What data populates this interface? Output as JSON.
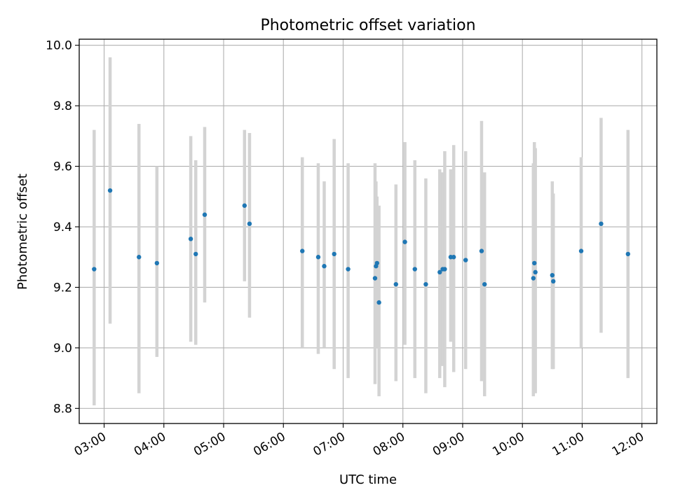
{
  "chart_data": {
    "type": "scatter",
    "title": "Photometric offset variation",
    "xlabel": "UTC time",
    "ylabel": "Photometric offset",
    "xlim": [
      "02:35",
      "12:15"
    ],
    "ylim": [
      8.75,
      10.02
    ],
    "grid": true,
    "x_ticks": [
      "03:00",
      "04:00",
      "05:00",
      "06:00",
      "07:00",
      "08:00",
      "09:00",
      "10:00",
      "11:00",
      "12:00"
    ],
    "y_ticks": [
      "8.8",
      "9.0",
      "9.2",
      "9.4",
      "9.6",
      "9.8",
      "10.0"
    ],
    "colors": {
      "points": "#1f77b4",
      "errorbars": "#d3d3d3",
      "grid": "#b0b0b0"
    },
    "points": [
      {
        "x": "02:50",
        "y": 9.26,
        "ylo": 8.81,
        "yhi": 9.72
      },
      {
        "x": "03:06",
        "y": 9.52,
        "ylo": 9.08,
        "yhi": 9.96
      },
      {
        "x": "03:35",
        "y": 9.3,
        "ylo": 8.85,
        "yhi": 9.74
      },
      {
        "x": "03:53",
        "y": 9.28,
        "ylo": 8.97,
        "yhi": 9.6
      },
      {
        "x": "04:27",
        "y": 9.36,
        "ylo": 9.02,
        "yhi": 9.7
      },
      {
        "x": "04:32",
        "y": 9.31,
        "ylo": 9.01,
        "yhi": 9.62
      },
      {
        "x": "04:41",
        "y": 9.44,
        "ylo": 9.15,
        "yhi": 9.73
      },
      {
        "x": "05:21",
        "y": 9.47,
        "ylo": 9.22,
        "yhi": 9.72
      },
      {
        "x": "05:26",
        "y": 9.41,
        "ylo": 9.1,
        "yhi": 9.71
      },
      {
        "x": "06:19",
        "y": 9.32,
        "ylo": 9.0,
        "yhi": 9.63
      },
      {
        "x": "06:35",
        "y": 9.3,
        "ylo": 8.98,
        "yhi": 9.61
      },
      {
        "x": "06:41",
        "y": 9.27,
        "ylo": 9.0,
        "yhi": 9.55
      },
      {
        "x": "06:51",
        "y": 9.31,
        "ylo": 8.93,
        "yhi": 9.69
      },
      {
        "x": "07:05",
        "y": 9.26,
        "ylo": 8.9,
        "yhi": 9.61
      },
      {
        "x": "07:32",
        "y": 9.23,
        "ylo": 8.88,
        "yhi": 9.61
      },
      {
        "x": "07:33",
        "y": 9.27,
        "ylo": 9.0,
        "yhi": 9.55
      },
      {
        "x": "07:34",
        "y": 9.28,
        "ylo": 9.07,
        "yhi": 9.5
      },
      {
        "x": "07:36",
        "y": 9.15,
        "ylo": 8.84,
        "yhi": 9.47
      },
      {
        "x": "07:53",
        "y": 9.21,
        "ylo": 8.89,
        "yhi": 9.54
      },
      {
        "x": "08:02",
        "y": 9.35,
        "ylo": 9.01,
        "yhi": 9.68
      },
      {
        "x": "08:12",
        "y": 9.26,
        "ylo": 8.9,
        "yhi": 9.62
      },
      {
        "x": "08:23",
        "y": 9.21,
        "ylo": 8.85,
        "yhi": 9.56
      },
      {
        "x": "08:37",
        "y": 9.25,
        "ylo": 8.9,
        "yhi": 9.59
      },
      {
        "x": "08:40",
        "y": 9.26,
        "ylo": 8.94,
        "yhi": 9.58
      },
      {
        "x": "08:42",
        "y": 9.26,
        "ylo": 8.87,
        "yhi": 9.65
      },
      {
        "x": "08:48",
        "y": 9.3,
        "ylo": 9.02,
        "yhi": 9.59
      },
      {
        "x": "08:51",
        "y": 9.3,
        "ylo": 8.92,
        "yhi": 9.67
      },
      {
        "x": "09:03",
        "y": 9.29,
        "ylo": 8.93,
        "yhi": 9.65
      },
      {
        "x": "09:19",
        "y": 9.32,
        "ylo": 8.89,
        "yhi": 9.75
      },
      {
        "x": "09:22",
        "y": 9.21,
        "ylo": 8.84,
        "yhi": 9.58
      },
      {
        "x": "10:11",
        "y": 9.23,
        "ylo": 8.84,
        "yhi": 9.61
      },
      {
        "x": "10:12",
        "y": 9.28,
        "ylo": 8.88,
        "yhi": 9.68
      },
      {
        "x": "10:13",
        "y": 9.25,
        "ylo": 8.85,
        "yhi": 9.66
      },
      {
        "x": "10:30",
        "y": 9.24,
        "ylo": 8.93,
        "yhi": 9.55
      },
      {
        "x": "10:31",
        "y": 9.22,
        "ylo": 8.93,
        "yhi": 9.51
      },
      {
        "x": "10:59",
        "y": 9.32,
        "ylo": 9.0,
        "yhi": 9.63
      },
      {
        "x": "11:19",
        "y": 9.41,
        "ylo": 9.05,
        "yhi": 9.76
      },
      {
        "x": "11:46",
        "y": 9.31,
        "ylo": 8.9,
        "yhi": 9.72
      }
    ]
  }
}
